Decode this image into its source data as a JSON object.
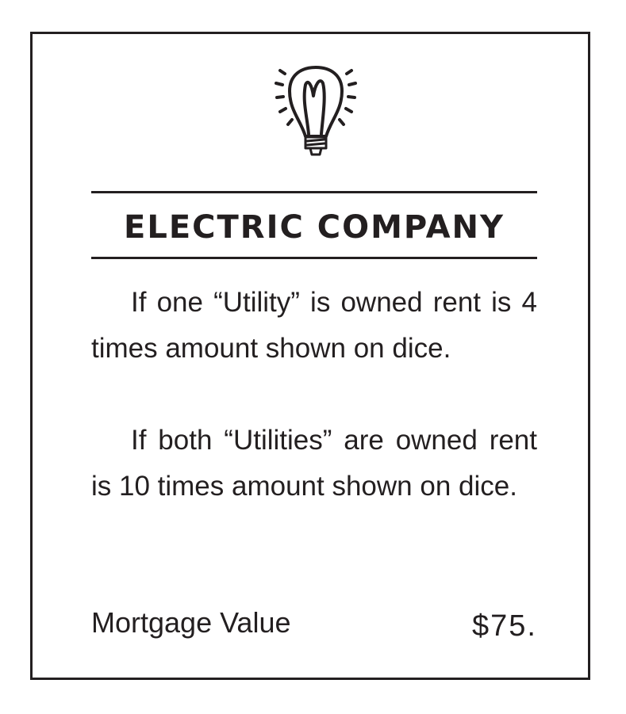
{
  "card": {
    "title": "ELECTRIC COMPANY",
    "icon": "lightbulb-icon",
    "rules": [
      "If one “Utility” is owned rent is 4 times amount shown on dice.",
      "If both “Utilities” are owned rent is 10 times amount shown on dice."
    ],
    "mortgage_label": "Mortgage Value",
    "mortgage_value": "$75.",
    "colors": {
      "ink": "#231f20",
      "background": "#ffffff"
    }
  }
}
